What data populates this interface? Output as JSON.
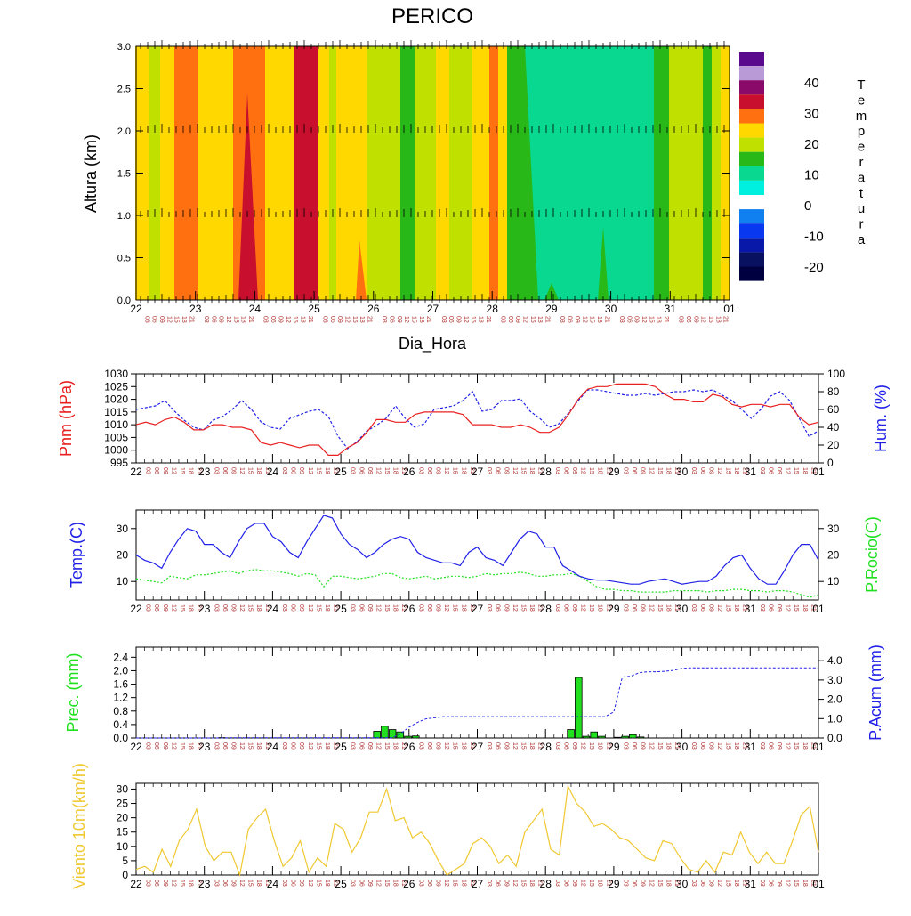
{
  "title": "PERICO",
  "xlabel_top": "Dia_Hora",
  "day_labels": [
    "22",
    "23",
    "24",
    "25",
    "26",
    "27",
    "28",
    "29",
    "30",
    "31",
    "01"
  ],
  "hour_labels": [
    "03",
    "06",
    "09",
    "12",
    "15",
    "18",
    "21"
  ],
  "colors": {
    "red": "#e82020",
    "blue": "#2020e8",
    "green": "#20e020",
    "yellow": "#f0c830",
    "hour": "#b03030"
  },
  "chart_data": [
    {
      "type": "heatmap",
      "name": "cross-section",
      "ylabel": "Altura (km)",
      "ylim": [
        0,
        3
      ],
      "yticks": [
        "0.0",
        "0.5",
        "1.0",
        "1.5",
        "2.0",
        "2.5",
        "3.0"
      ],
      "legend_title": [
        "T",
        "e",
        "m",
        "p",
        "e",
        "r",
        "a",
        "t",
        "u",
        "r",
        "a"
      ],
      "legend_ticks": [
        "40",
        "30",
        "20",
        "10",
        "0",
        "-10",
        "-20"
      ],
      "legend_colors": [
        "#5a0a8c",
        "#b99ad6",
        "#8a0a6a",
        "#c8102e",
        "#ff7010",
        "#ffd800",
        "#c0e000",
        "#28b818",
        "#08d890",
        "#00f0e0",
        "#ffffff",
        "#1080f0",
        "#0838f0",
        "#0818a8",
        "#081060",
        "#000040"
      ],
      "columns": [
        "#ffd800",
        "#c0e000",
        "#ffd800",
        "#ff7010",
        "#ffd800",
        "#ff7010",
        "#ffd800",
        "#c8102e",
        "#ffd800",
        "#c0e000",
        "#ffd800",
        "#c0e000",
        "#28b818",
        "#c0e000",
        "#ffd800",
        "#c0e000",
        "#ffd800",
        "#ff7010",
        "#ffd800",
        "#28b818",
        "#08d890",
        "#08d890",
        "#08d890",
        "#28b818",
        "#c0e000",
        "#28b818",
        "#c0e000",
        "#ffd800"
      ],
      "column_breaks": [
        152,
        168,
        180,
        196,
        222,
        262,
        298,
        330,
        358,
        370,
        378,
        412,
        450,
        466,
        490,
        505,
        530,
        550,
        560,
        570,
        590,
        656,
        715,
        735,
        752,
        790,
        800,
        810,
        820
      ]
    },
    {
      "type": "line",
      "name": "pressure-humidity",
      "ylabel_left": "Pnm (hPa)",
      "ylabel_right": "Hum. (%)",
      "ylim_left": [
        995,
        1030
      ],
      "ylim_right": [
        0,
        100
      ],
      "yticks_left": [
        "995",
        "1000",
        "1005",
        "1010",
        "1015",
        "1020",
        "1025",
        "1030"
      ],
      "yticks_right": [
        "0",
        "20",
        "40",
        "60",
        "80",
        "100"
      ],
      "series": [
        {
          "axis": "left",
          "style": "solid",
          "color": "#e82020",
          "values": [
            1010,
            1011,
            1010,
            1012,
            1013,
            1011,
            1008,
            1008,
            1010,
            1010,
            1009,
            1009,
            1008,
            1003,
            1002,
            1003,
            1002,
            1001,
            1002,
            1002,
            998,
            998,
            1001,
            1003,
            1007,
            1012,
            1012,
            1011,
            1011,
            1014,
            1015,
            1015,
            1015,
            1015,
            1014,
            1010,
            1010,
            1010,
            1009,
            1009,
            1010,
            1009,
            1007,
            1007,
            1009,
            1014,
            1020,
            1024,
            1025,
            1025,
            1026,
            1026,
            1026,
            1026,
            1025,
            1022,
            1020,
            1020,
            1019,
            1019,
            1022,
            1021,
            1018,
            1017,
            1018,
            1018,
            1017,
            1018,
            1018,
            1013,
            1010,
            1011
          ]
        },
        {
          "axis": "right",
          "style": "dashed",
          "color": "#2020e8",
          "values": [
            60,
            62,
            64,
            70,
            58,
            48,
            40,
            37,
            48,
            52,
            60,
            70,
            60,
            46,
            40,
            38,
            50,
            54,
            58,
            60,
            52,
            30,
            16,
            24,
            36,
            42,
            50,
            64,
            50,
            40,
            44,
            60,
            62,
            64,
            70,
            80,
            58,
            60,
            70,
            70,
            72,
            58,
            50,
            40,
            44,
            56,
            70,
            82,
            82,
            80,
            78,
            76,
            76,
            78,
            76,
            78,
            80,
            80,
            82,
            80,
            82,
            76,
            70,
            60,
            50,
            60,
            75,
            80,
            70,
            50,
            30,
            36
          ]
        }
      ]
    },
    {
      "type": "line",
      "name": "temperature-dewpoint",
      "ylabel_left": "Temp.(C)",
      "ylabel_right": "P.Rocio(C)",
      "ylim": [
        3,
        37
      ],
      "yticks": [
        "10",
        "20",
        "30"
      ],
      "series": [
        {
          "axis": "left",
          "style": "solid",
          "color": "#2020e8",
          "values": [
            20,
            18,
            17,
            15,
            21,
            26,
            30,
            29,
            24,
            24,
            21,
            19,
            25,
            30,
            32,
            32,
            27,
            25,
            21,
            19,
            25,
            30,
            35,
            34,
            28,
            24,
            22,
            19,
            21,
            24,
            26,
            27,
            26,
            21,
            19,
            18,
            17,
            17,
            16,
            21,
            23,
            19,
            18,
            16,
            21,
            26,
            29,
            28,
            23,
            23,
            16,
            14,
            12,
            11,
            10.5,
            10.5,
            10,
            9.5,
            9,
            9,
            10,
            10.5,
            11,
            10,
            9,
            9.5,
            10,
            10,
            12,
            16,
            19,
            20,
            15,
            11,
            9,
            9,
            14,
            20,
            24,
            24,
            18
          ]
        },
        {
          "axis": "left",
          "style": "dotted",
          "color": "#20e020",
          "values": [
            11,
            10.5,
            10,
            9.5,
            12,
            11.5,
            11,
            12.5,
            12.5,
            13,
            13.5,
            14,
            13,
            14,
            14.5,
            14,
            14,
            13.5,
            13,
            12,
            13,
            12.5,
            8,
            12,
            12,
            11.5,
            11,
            11.5,
            12,
            13,
            13,
            11.5,
            11,
            11.5,
            12,
            11,
            11.5,
            12,
            12,
            11.5,
            12,
            13,
            12.5,
            13,
            13,
            13.5,
            13,
            12,
            12,
            12.5,
            12.5,
            13,
            12,
            10,
            8,
            7,
            7,
            6.5,
            6.5,
            6,
            6,
            6,
            6,
            6.5,
            6.5,
            6.5,
            6.5,
            6,
            6.5,
            6.5,
            7,
            7,
            6.5,
            6.5,
            6,
            6.5,
            6.5,
            6,
            5,
            4,
            5
          ]
        }
      ]
    },
    {
      "type": "bar",
      "name": "precipitation",
      "ylabel_left": "Prec. (mm)",
      "ylabel_right": "P.Acum (mm)",
      "ylim_left": [
        0,
        2.7
      ],
      "ylim_right": [
        0,
        4.7
      ],
      "yticks_left": [
        "0.0",
        "0.4",
        "0.8",
        "1.2",
        "1.6",
        "2.0",
        "2.4"
      ],
      "yticks_right": [
        "0.0",
        "1.0",
        "2.0",
        "3.0",
        "4.0"
      ],
      "bars": [
        {
          "i": 11,
          "v": 0.01
        },
        {
          "i": 31,
          "v": 0.2
        },
        {
          "i": 32,
          "v": 0.35
        },
        {
          "i": 33,
          "v": 0.25
        },
        {
          "i": 34,
          "v": 0.18
        },
        {
          "i": 35,
          "v": 0.05
        },
        {
          "i": 36,
          "v": 0.06
        },
        {
          "i": 56,
          "v": 0.25
        },
        {
          "i": 57,
          "v": 1.8
        },
        {
          "i": 58,
          "v": 0.05
        },
        {
          "i": 59,
          "v": 0.18
        },
        {
          "i": 60,
          "v": 0.05
        },
        {
          "i": 62,
          "v": 0.02
        },
        {
          "i": 63,
          "v": 0.05
        },
        {
          "i": 64,
          "v": 0.1
        },
        {
          "i": 65,
          "v": 0.03
        }
      ],
      "accum": [
        0,
        0,
        0,
        0,
        0,
        0,
        0,
        0,
        0,
        0,
        0,
        0.01,
        0.01,
        0.01,
        0.01,
        0.01,
        0.01,
        0.01,
        0.01,
        0.01,
        0.01,
        0.01,
        0.01,
        0.01,
        0.01,
        0.01,
        0.01,
        0.01,
        0.01,
        0.01,
        0.01,
        0.21,
        0.56,
        0.81,
        0.99,
        1.04,
        1.1,
        1.1,
        1.1,
        1.1,
        1.1,
        1.1,
        1.1,
        1.1,
        1.1,
        1.1,
        1.1,
        1.1,
        1.1,
        1.1,
        1.1,
        1.1,
        1.1,
        1.1,
        1.1,
        1.1,
        1.35,
        3.15,
        3.2,
        3.38,
        3.43,
        3.43,
        3.45,
        3.5,
        3.6,
        3.63,
        3.63,
        3.63,
        3.63,
        3.63,
        3.63,
        3.63,
        3.63,
        3.63,
        3.63,
        3.63,
        3.63,
        3.63,
        3.63,
        3.63,
        3.63
      ]
    },
    {
      "type": "line",
      "name": "wind",
      "ylabel": "Viento 10m(km/h)",
      "ylim": [
        0,
        32
      ],
      "yticks": [
        "0",
        "5",
        "10",
        "15",
        "20",
        "25",
        "30"
      ],
      "series": [
        {
          "style": "solid",
          "color": "#f0c830",
          "values": [
            2,
            3,
            1,
            9,
            3,
            12,
            16,
            23,
            10,
            5,
            8,
            8,
            0,
            16,
            20,
            23,
            12,
            3,
            6,
            12,
            1,
            6,
            3,
            18,
            16,
            8,
            13,
            22,
            22,
            30,
            19,
            20,
            13,
            15,
            11,
            5,
            0,
            2,
            4,
            11,
            13,
            10,
            4,
            7,
            3,
            15,
            19,
            23,
            9,
            7,
            31,
            25,
            22,
            17,
            18,
            16,
            13,
            12,
            9,
            6,
            5,
            12,
            11,
            6,
            2,
            1,
            5,
            1,
            8,
            7,
            15,
            8,
            4,
            8,
            4,
            4,
            12,
            21,
            24,
            8
          ]
        }
      ]
    }
  ]
}
